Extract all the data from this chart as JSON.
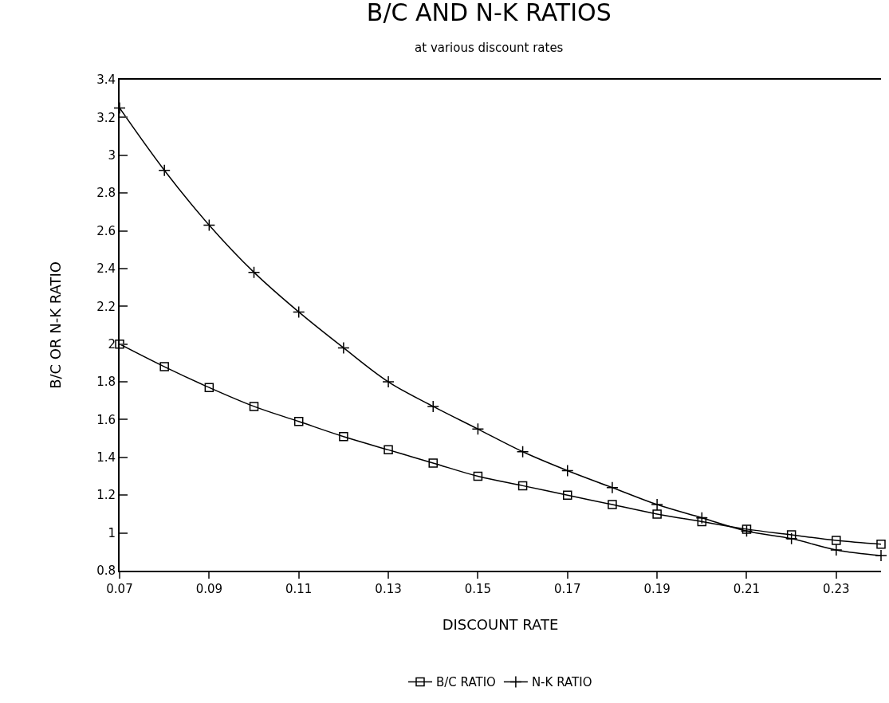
{
  "chart_data": {
    "type": "line",
    "title": "B/C AND N-K RATIOS",
    "subtitle": "at various discount rates",
    "xlabel": "DISCOUNT RATE",
    "ylabel": "B/C OR N-K RATIO",
    "x": [
      0.07,
      0.08,
      0.09,
      0.1,
      0.11,
      0.12,
      0.13,
      0.14,
      0.15,
      0.16,
      0.17,
      0.18,
      0.19,
      0.2,
      0.21,
      0.22,
      0.23,
      0.24
    ],
    "series": [
      {
        "name": "B/C RATIO",
        "color": "#000000",
        "marker": "square",
        "values": [
          2.0,
          1.88,
          1.77,
          1.67,
          1.59,
          1.51,
          1.44,
          1.37,
          1.3,
          1.25,
          1.2,
          1.15,
          1.1,
          1.06,
          1.02,
          0.99,
          0.96,
          0.94
        ]
      },
      {
        "name": "N-K RATIO",
        "color": "#000000",
        "marker": "cross",
        "values": [
          3.25,
          2.92,
          2.63,
          2.38,
          2.17,
          1.98,
          1.8,
          1.67,
          1.55,
          1.43,
          1.33,
          1.24,
          1.15,
          1.08,
          1.01,
          0.97,
          0.91,
          0.88
        ]
      }
    ],
    "xlim": [
      0.07,
      0.24
    ],
    "xticks": [
      0.07,
      0.09,
      0.11,
      0.13,
      0.15,
      0.17,
      0.19,
      0.21,
      0.23
    ],
    "ylim": [
      0.8,
      3.4
    ],
    "yticks": [
      0.8,
      1,
      1.2,
      1.4,
      1.6,
      1.8,
      2,
      2.2,
      2.4,
      2.6,
      2.8,
      3,
      3.2,
      3.4
    ],
    "legend": "bottom",
    "line_style": "solid"
  }
}
